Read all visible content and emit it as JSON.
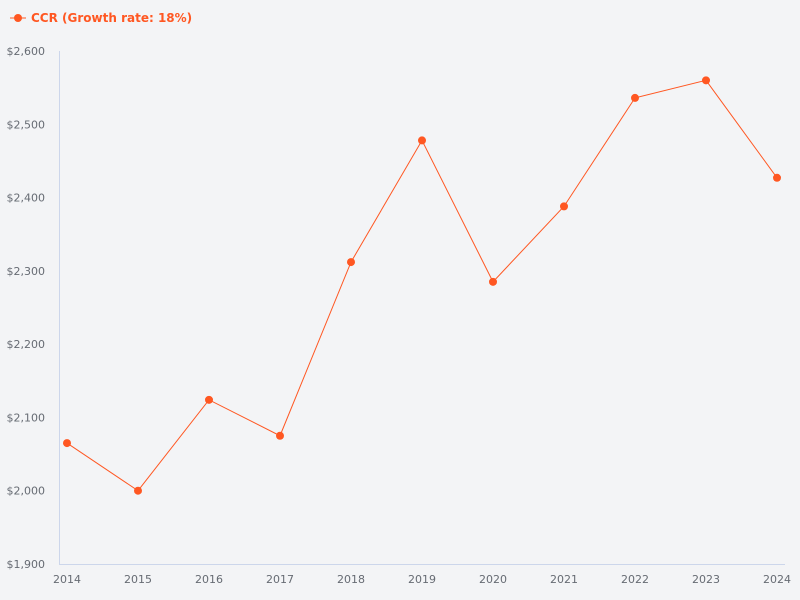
{
  "chart_data": {
    "type": "line",
    "title": "",
    "xlabel": "",
    "ylabel": "",
    "legend": {
      "placement": "top-left"
    },
    "grid": false,
    "ylim": [
      1900,
      2600
    ],
    "yticks": [
      1900,
      2000,
      2100,
      2200,
      2300,
      2400,
      2500,
      2600
    ],
    "ytick_labels": [
      "$1,900",
      "$2,000",
      "$2,100",
      "$2,200",
      "$2,300",
      "$2,400",
      "$2,500",
      "$2,600"
    ],
    "categories": [
      "2014",
      "2015",
      "2016",
      "2017",
      "2018",
      "2019",
      "2020",
      "2021",
      "2022",
      "2023",
      "2024"
    ],
    "series": [
      {
        "name": "CCR (Growth rate: 18%)",
        "color": "#ff5722",
        "values": [
          2065,
          2000,
          2124,
          2075,
          2312,
          2478,
          2285,
          2388,
          2536,
          2560,
          2427
        ]
      }
    ]
  }
}
